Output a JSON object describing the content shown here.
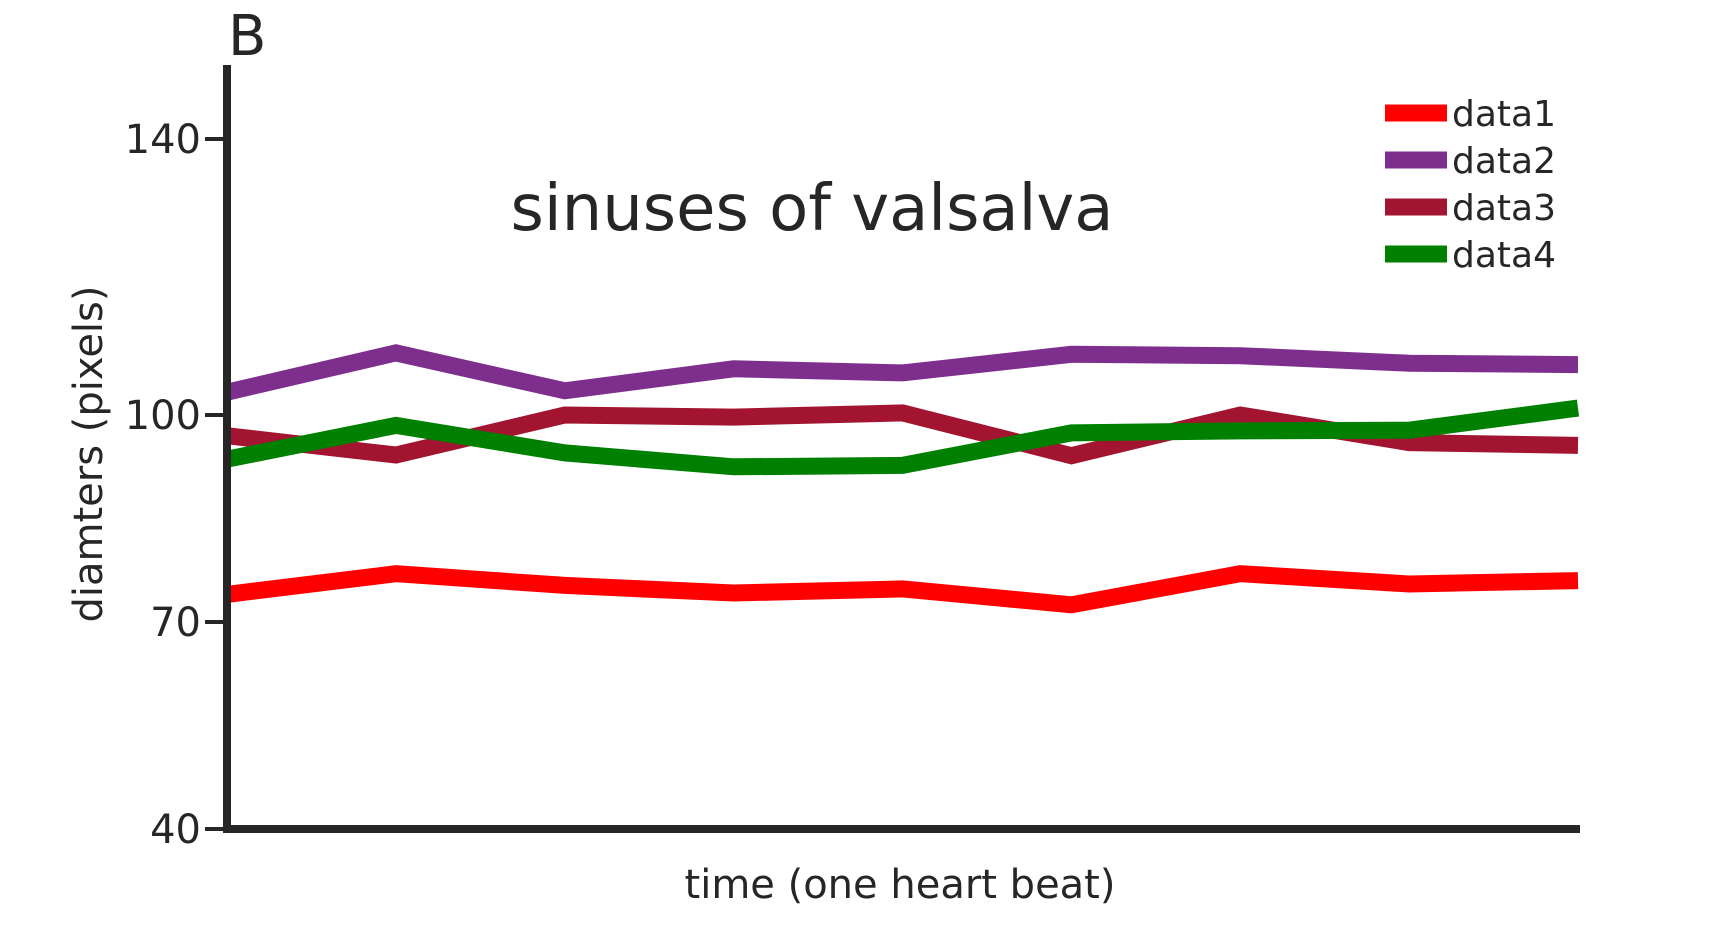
{
  "chart_data": {
    "type": "line",
    "panel_label": "B",
    "title": "sinuses of valsalva",
    "xlabel": "time (one heart beat)",
    "ylabel": "diamters (pixels)",
    "ylim": [
      40,
      150
    ],
    "yticks": [
      40,
      70,
      100,
      140
    ],
    "x": [
      1,
      2,
      3,
      4,
      5,
      6,
      7,
      8,
      9
    ],
    "xlim": [
      1,
      9
    ],
    "grid": false,
    "legend_position": "top-right",
    "series": [
      {
        "name": "data1",
        "color": "#ff0000",
        "values": [
          74,
          77,
          75.3,
          74.2,
          74.8,
          72.5,
          77,
          75.5,
          76
        ]
      },
      {
        "name": "data2",
        "color": "#7e2f8e",
        "values": [
          103.3,
          109,
          103.5,
          106.7,
          106.1,
          108.8,
          108.6,
          107.5,
          107.3
        ]
      },
      {
        "name": "data3",
        "color": "#a2142f",
        "values": [
          97,
          94.2,
          100,
          99.7,
          100.3,
          94.1,
          100,
          96,
          95.6
        ]
      },
      {
        "name": "data4",
        "color": "#008000",
        "values": [
          93.6,
          98.5,
          94.5,
          92.5,
          92.7,
          97.4,
          97.7,
          97.8,
          101
        ]
      }
    ]
  }
}
